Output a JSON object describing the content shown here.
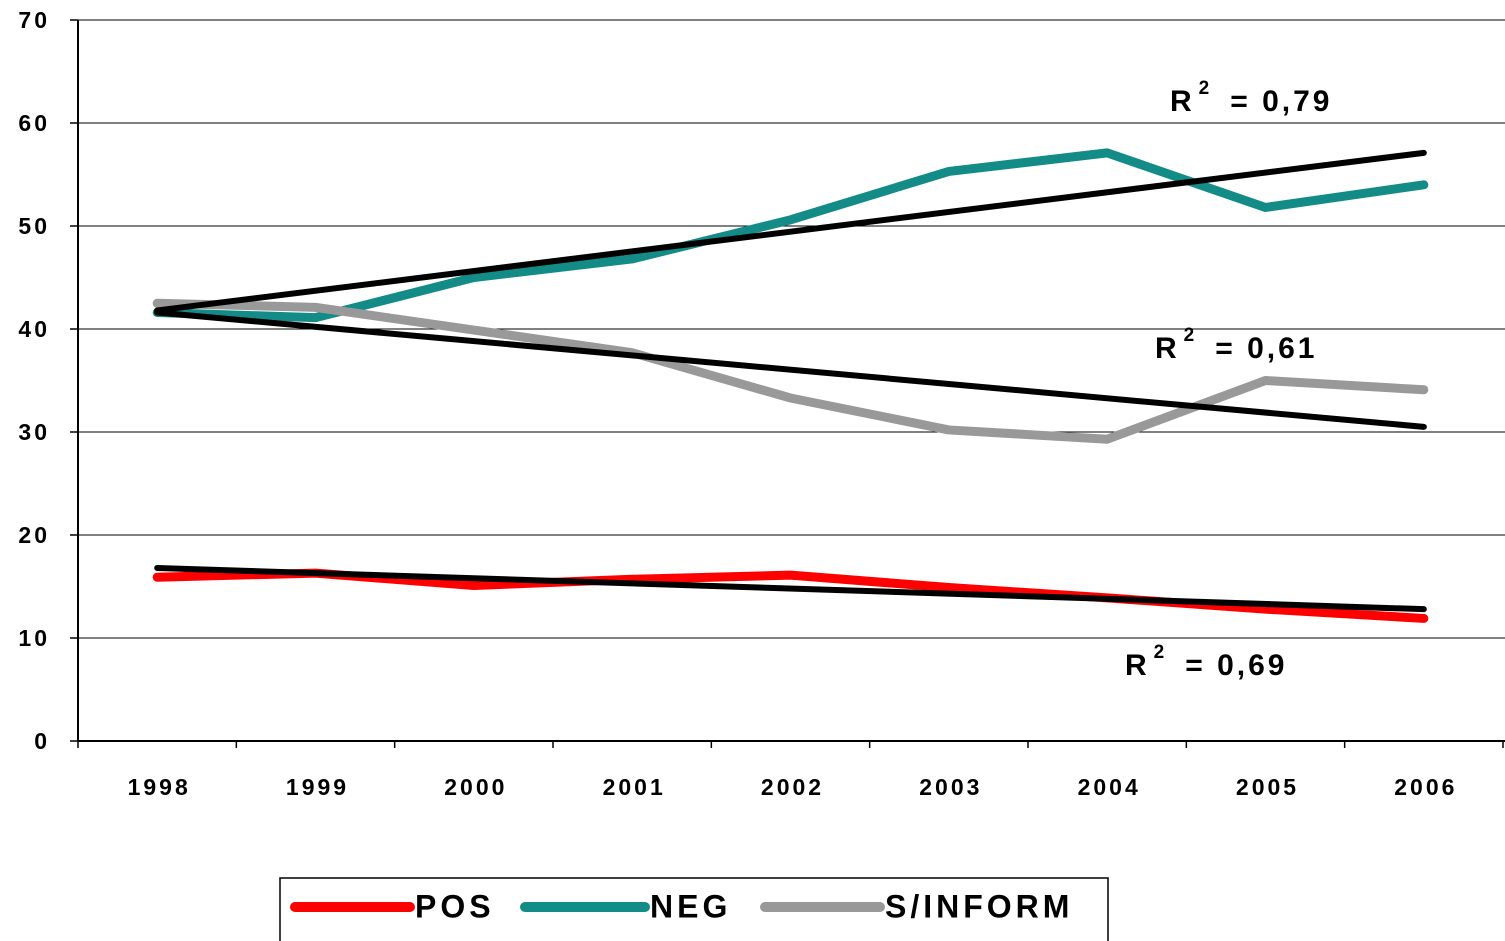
{
  "chart_data": {
    "type": "line",
    "categories": [
      "1998",
      "1999",
      "2000",
      "2001",
      "2002",
      "2003",
      "2004",
      "2005",
      "2006"
    ],
    "ylim": [
      0,
      70
    ],
    "yticks": [
      0,
      10,
      20,
      30,
      40,
      50,
      60,
      70
    ],
    "grid": true,
    "trend_color": "#000000",
    "series": [
      {
        "name": "POS",
        "color": "#ff0000",
        "values": [
          15.9,
          16.3,
          15.1,
          15.7,
          16.1,
          14.9,
          13.9,
          12.8,
          11.9
        ],
        "trend": [
          16.8,
          12.8
        ],
        "trend_label": {
          "base": "R",
          "sup": "2",
          "value": "= 0,69"
        }
      },
      {
        "name": "NEG",
        "color": "#138b86",
        "values": [
          41.6,
          41.1,
          45.0,
          46.8,
          50.6,
          55.3,
          57.1,
          51.8,
          54.0
        ],
        "trend": [
          41.8,
          57.1
        ],
        "trend_label": {
          "base": "R",
          "sup": "2",
          "value": "= 0,79"
        }
      },
      {
        "name": "S/INFORM",
        "color": "#999999",
        "values": [
          42.5,
          42.1,
          39.9,
          37.7,
          33.3,
          30.2,
          29.3,
          35.0,
          34.1
        ],
        "trend": [
          41.6,
          30.5
        ],
        "trend_label": {
          "base": "R",
          "sup": "2",
          "value": "= 0,61"
        }
      }
    ]
  }
}
